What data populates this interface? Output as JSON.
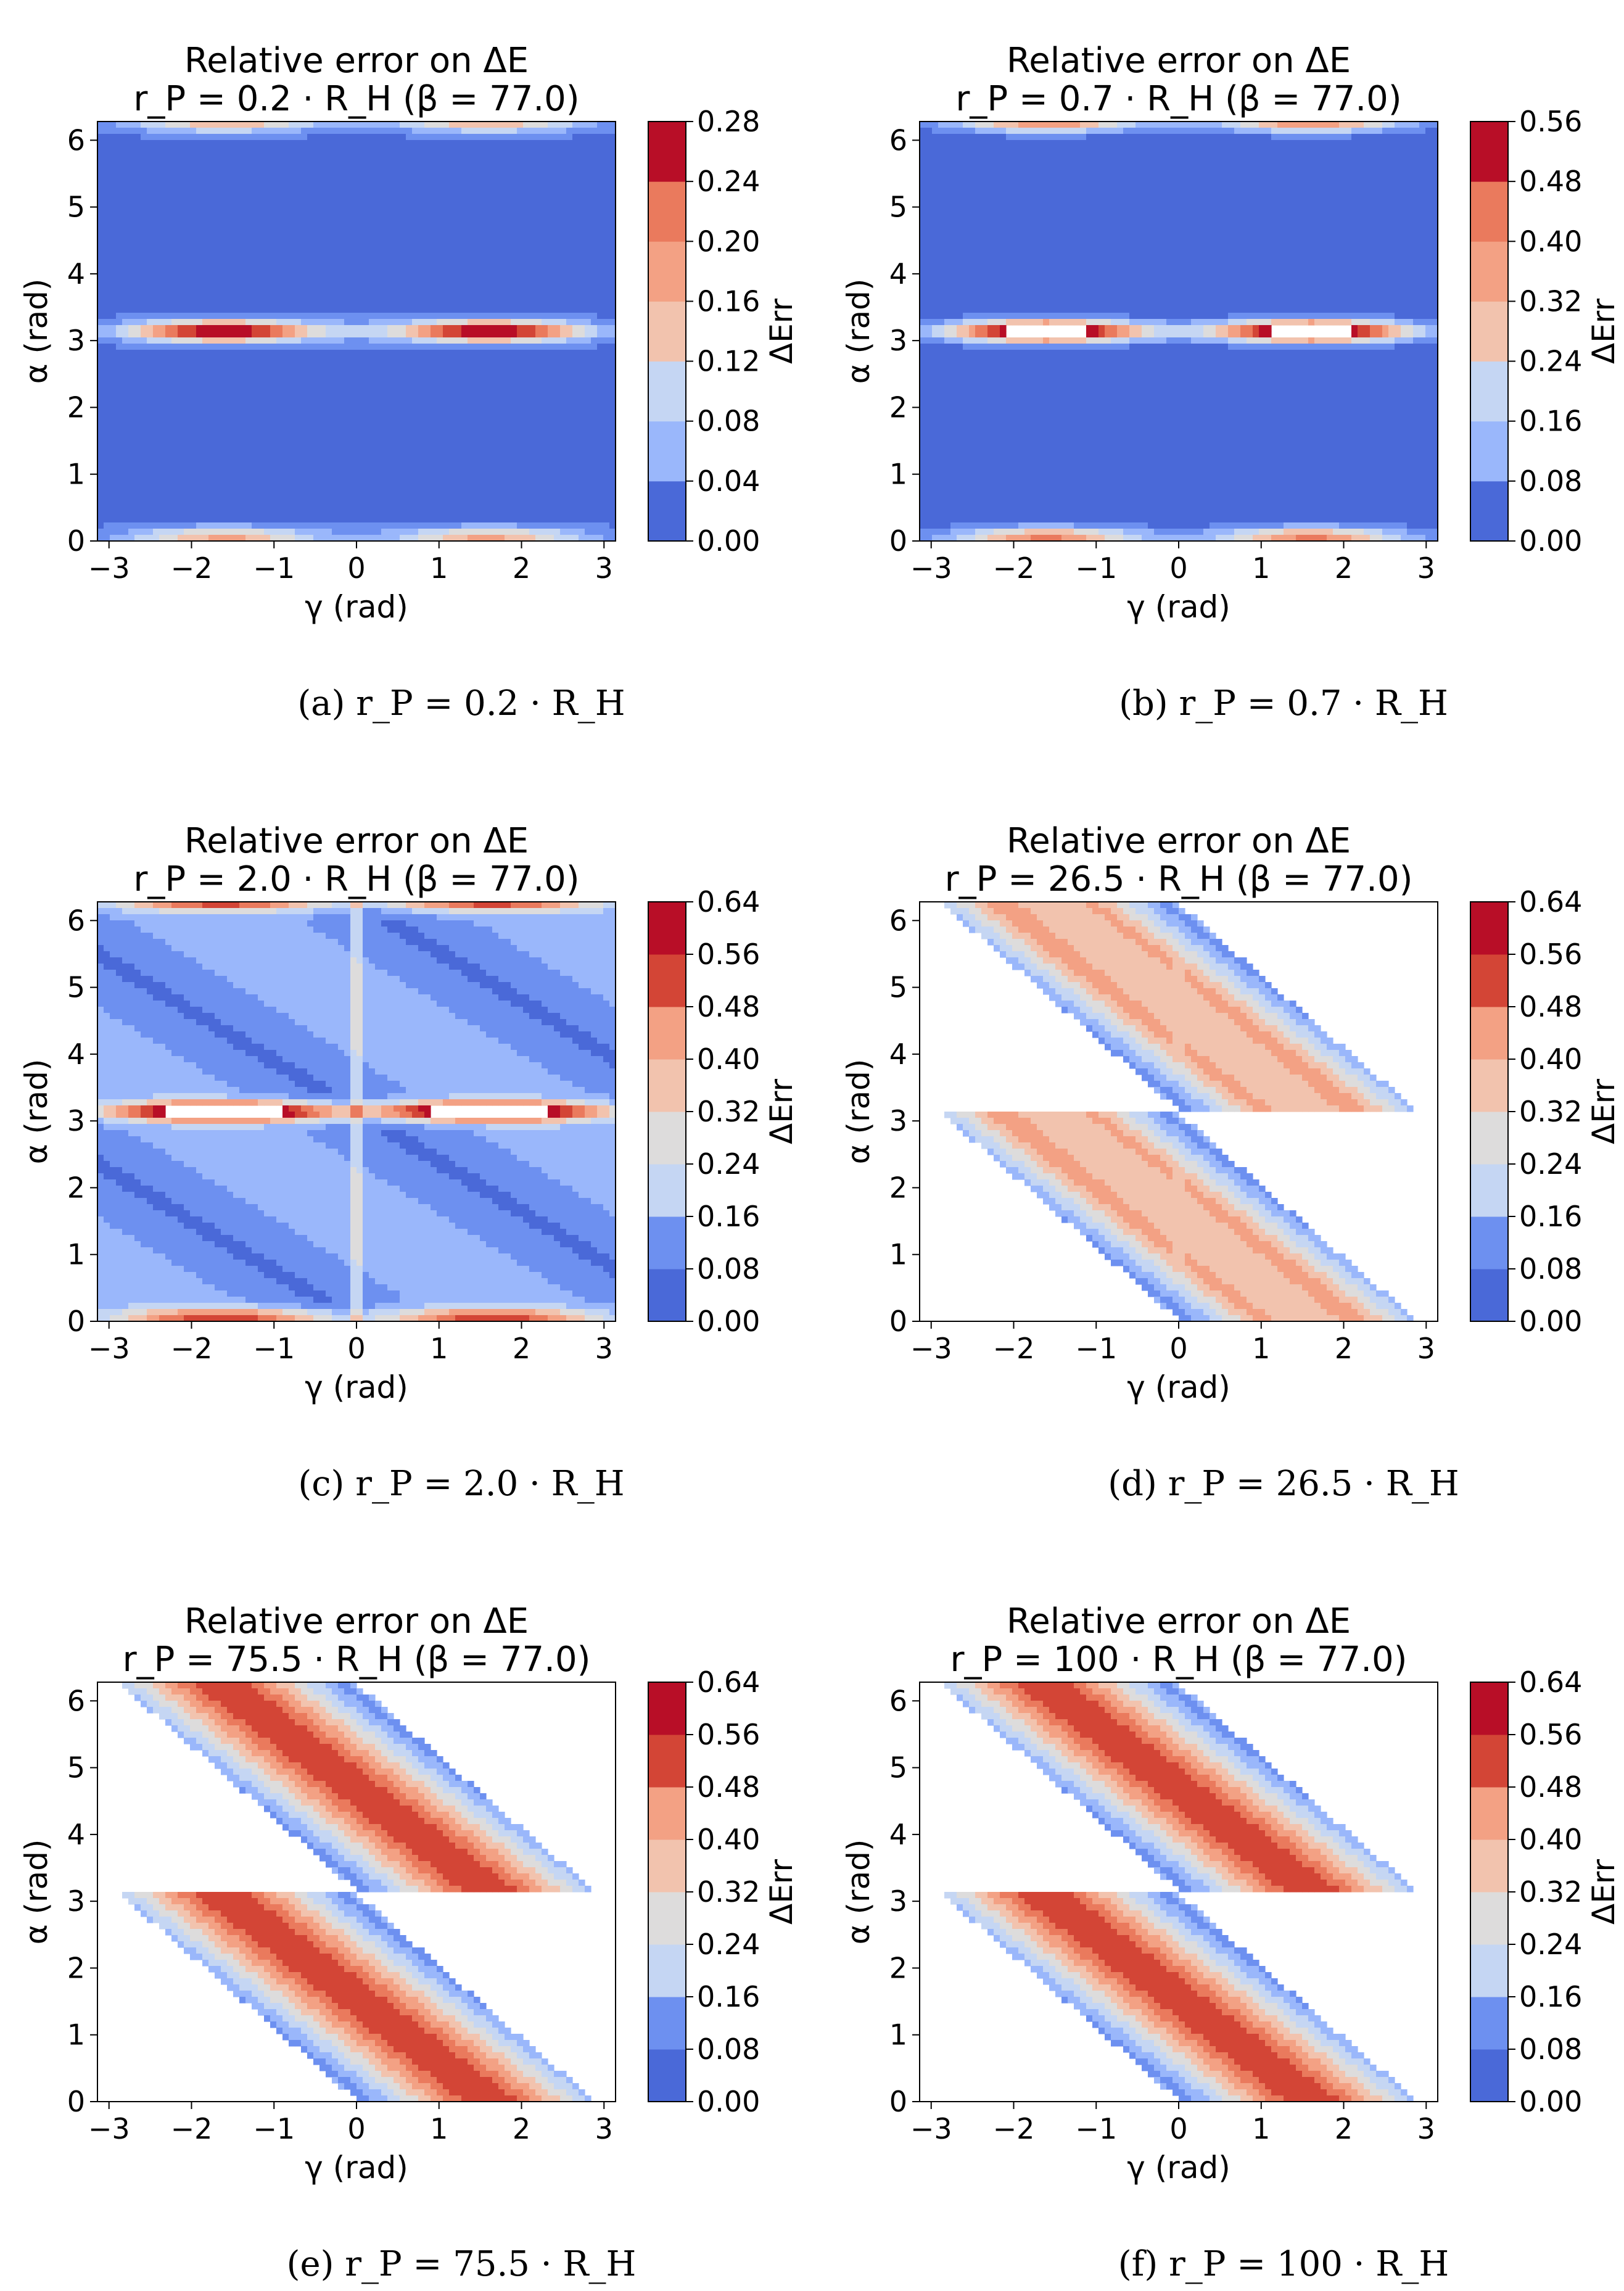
{
  "chart_data": [
    {
      "type": "heatmap",
      "panel": "a",
      "title": "Relative error on ΔE",
      "subtitle": "r_P = 0.2 · R_H (β = 77.0)",
      "caption": "(a) r_P = 0.2 · R_H",
      "xlabel": "γ (rad)",
      "ylabel": "α (rad)",
      "cbar_label": "ΔErr",
      "xlim": [
        -3.14,
        3.14
      ],
      "ylim": [
        0,
        6.28
      ],
      "xticks": [
        "−3",
        "−2",
        "−1",
        "0",
        "1",
        "2",
        "3"
      ],
      "yticks": [
        "0",
        "1",
        "2",
        "3",
        "4",
        "5",
        "6"
      ],
      "colorbar_ticks": [
        "0.00",
        "0.04",
        "0.08",
        "0.12",
        "0.16",
        "0.20",
        "0.24",
        "0.28"
      ],
      "pattern": "baseline_hotspots",
      "hotspot_peak": 0.28
    },
    {
      "type": "heatmap",
      "panel": "b",
      "title": "Relative error on ΔE",
      "subtitle": "r_P = 0.7 · R_H (β = 77.0)",
      "caption": "(b) r_P = 0.7 · R_H",
      "xlabel": "γ (rad)",
      "ylabel": "α (rad)",
      "cbar_label": "ΔErr",
      "xlim": [
        -3.14,
        3.14
      ],
      "ylim": [
        0,
        6.28
      ],
      "xticks": [
        "−3",
        "−2",
        "−1",
        "0",
        "1",
        "2",
        "3"
      ],
      "yticks": [
        "0",
        "1",
        "2",
        "3",
        "4",
        "5",
        "6"
      ],
      "colorbar_ticks": [
        "0.00",
        "0.08",
        "0.16",
        "0.24",
        "0.32",
        "0.40",
        "0.48",
        "0.56"
      ],
      "pattern": "baseline_hotspots_saturated",
      "hotspot_peak": 0.56
    },
    {
      "type": "heatmap",
      "panel": "c",
      "title": "Relative error on ΔE",
      "subtitle": "r_P = 2.0 · R_H (β = 77.0)",
      "caption": "(c) r_P = 2.0 · R_H",
      "xlabel": "γ (rad)",
      "ylabel": "α (rad)",
      "cbar_label": "ΔErr",
      "xlim": [
        -3.14,
        3.14
      ],
      "ylim": [
        0,
        6.28
      ],
      "xticks": [
        "−3",
        "−2",
        "−1",
        "0",
        "1",
        "2",
        "3"
      ],
      "yticks": [
        "0",
        "1",
        "2",
        "3",
        "4",
        "5",
        "6"
      ],
      "colorbar_ticks": [
        "0.00",
        "0.08",
        "0.16",
        "0.24",
        "0.32",
        "0.40",
        "0.48",
        "0.56",
        "0.64"
      ],
      "pattern": "bands_with_hotspots",
      "hotspot_peak": 0.64
    },
    {
      "type": "heatmap",
      "panel": "d",
      "title": "Relative error on ΔE",
      "subtitle": "r_P = 26.5 · R_H (β = 77.0)",
      "caption": "(d) r_P = 26.5 · R_H",
      "xlabel": "γ (rad)",
      "ylabel": "α (rad)",
      "cbar_label": "ΔErr",
      "xlim": [
        -3.14,
        3.14
      ],
      "ylim": [
        0,
        6.28
      ],
      "xticks": [
        "−3",
        "−2",
        "−1",
        "0",
        "1",
        "2",
        "3"
      ],
      "yticks": [
        "0",
        "1",
        "2",
        "3",
        "4",
        "5",
        "6"
      ],
      "colorbar_ticks": [
        "0.00",
        "0.08",
        "0.16",
        "0.24",
        "0.32",
        "0.40",
        "0.48",
        "0.56",
        "0.64"
      ],
      "pattern": "diagonal_bands",
      "center_value": 0.35
    },
    {
      "type": "heatmap",
      "panel": "e",
      "title": "Relative error on ΔE",
      "subtitle": "r_P = 75.5 · R_H (β = 77.0)",
      "caption": "(e) r_P = 75.5 · R_H",
      "xlabel": "γ (rad)",
      "ylabel": "α (rad)",
      "cbar_label": "ΔErr",
      "xlim": [
        -3.14,
        3.14
      ],
      "ylim": [
        0,
        6.28
      ],
      "xticks": [
        "−3",
        "−2",
        "−1",
        "0",
        "1",
        "2",
        "3"
      ],
      "yticks": [
        "0",
        "1",
        "2",
        "3",
        "4",
        "5",
        "6"
      ],
      "colorbar_ticks": [
        "0.00",
        "0.08",
        "0.16",
        "0.24",
        "0.32",
        "0.40",
        "0.48",
        "0.56",
        "0.64"
      ],
      "pattern": "diagonal_bands",
      "center_value": 0.52
    },
    {
      "type": "heatmap",
      "panel": "f",
      "title": "Relative error on ΔE",
      "subtitle": "r_P = 100 · R_H (β = 77.0)",
      "caption": "(f) r_P = 100 · R_H",
      "xlabel": "γ (rad)",
      "ylabel": "α (rad)",
      "cbar_label": "ΔErr",
      "xlim": [
        -3.14,
        3.14
      ],
      "ylim": [
        0,
        6.28
      ],
      "xticks": [
        "−3",
        "−2",
        "−1",
        "0",
        "1",
        "2",
        "3"
      ],
      "yticks": [
        "0",
        "1",
        "2",
        "3",
        "4",
        "5",
        "6"
      ],
      "colorbar_ticks": [
        "0.00",
        "0.08",
        "0.16",
        "0.24",
        "0.32",
        "0.40",
        "0.48",
        "0.56",
        "0.64"
      ],
      "pattern": "diagonal_bands",
      "center_value": 0.55
    }
  ],
  "colormap": [
    "#4a69d8",
    "#6d90f0",
    "#9ab7fb",
    "#c5d6f3",
    "#dddcdc",
    "#f2c3ae",
    "#f3a184",
    "#ea7a5d",
    "#d34536",
    "#b80e27"
  ]
}
